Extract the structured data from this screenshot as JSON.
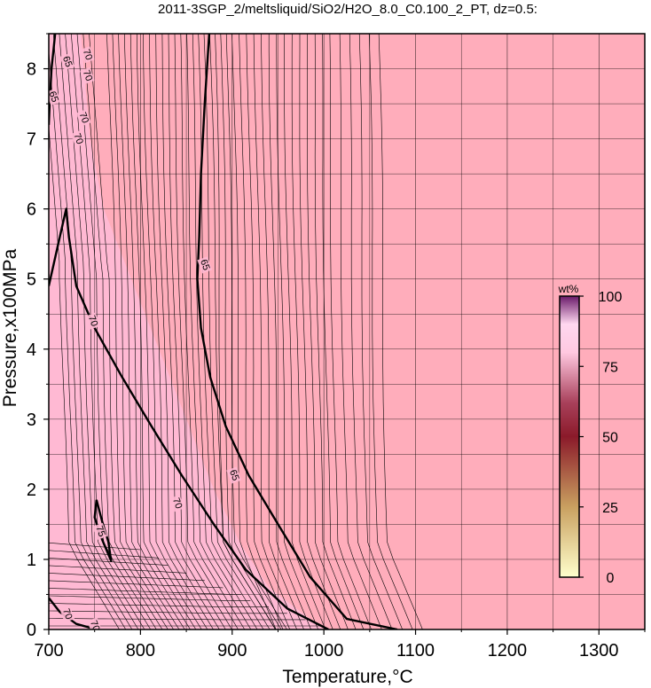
{
  "chart_data": {
    "type": "contour",
    "title": "2011-3SGP_2/meltsliquid/SiO2/H2O_8.0_C0.100_2_PT, dz=0.5:",
    "xlabel": "Temperature,°C",
    "ylabel": "Pressure,x100MPa",
    "xlim": [
      700,
      1350
    ],
    "ylim": [
      0,
      8.5
    ],
    "x_ticks": [
      700,
      800,
      900,
      1000,
      1100,
      1200,
      1300
    ],
    "y_ticks": [
      0,
      1,
      2,
      3,
      4,
      5,
      6,
      7,
      8
    ],
    "x_tick_labels": [
      "700",
      "800",
      "900",
      "1000",
      "1100",
      "1200",
      "1300"
    ],
    "y_tick_labels": [
      "0",
      "1",
      "2",
      "3",
      "4",
      "5",
      "6",
      "7",
      "8"
    ],
    "grid": true,
    "contour_interval": 0.5,
    "bold_contours": [
      {
        "level": 65,
        "label": "65",
        "points": [
          [
            875,
            8.5
          ],
          [
            870,
            7.5
          ],
          [
            866,
            6.5
          ],
          [
            864,
            5.6
          ],
          [
            862,
            5.0
          ],
          [
            866,
            4.3
          ],
          [
            876,
            3.6
          ],
          [
            893,
            2.9
          ],
          [
            918,
            2.2
          ],
          [
            950,
            1.5
          ],
          [
            985,
            0.75
          ],
          [
            1025,
            0.15
          ],
          [
            1080,
            0
          ]
        ]
      },
      {
        "level": 70,
        "label": "70",
        "points": [
          [
            700,
            4.9
          ],
          [
            712,
            5.6
          ],
          [
            719,
            6.0
          ],
          [
            722,
            5.6
          ],
          [
            730,
            4.9
          ],
          [
            750,
            4.3
          ],
          [
            780,
            3.6
          ],
          [
            812,
            2.9
          ],
          [
            845,
            2.2
          ],
          [
            880,
            1.5
          ],
          [
            915,
            0.85
          ],
          [
            960,
            0.3
          ],
          [
            1005,
            0
          ]
        ]
      },
      {
        "level": 70,
        "label": "70",
        "points": [
          [
            700,
            0.45
          ],
          [
            712,
            0.25
          ],
          [
            730,
            0.08
          ],
          [
            752,
            0
          ]
        ]
      },
      {
        "level": 75,
        "label": "75",
        "points": [
          [
            752,
            1.85
          ],
          [
            750,
            1.6
          ],
          [
            756,
            1.35
          ],
          [
            764,
            1.1
          ],
          [
            768,
            0.98
          ],
          [
            765,
            1.25
          ],
          [
            758,
            1.55
          ],
          [
            752,
            1.85
          ]
        ]
      },
      {
        "level": 65,
        "label": "65",
        "points": [
          [
            707,
            8.5
          ],
          [
            703,
            8.0
          ],
          [
            701,
            7.5
          ],
          [
            700,
            7.2
          ]
        ]
      }
    ],
    "small_labels": [
      {
        "text": "65",
        "x": 720,
        "y": 8.1
      },
      {
        "text": "65",
        "x": 705,
        "y": 7.6
      },
      {
        "text": "70",
        "x": 738,
        "y": 7.3
      },
      {
        "text": "70",
        "x": 732,
        "y": 7.0
      },
      {
        "text": "70",
        "x": 742,
        "y": 7.9
      },
      {
        "text": "70",
        "x": 742,
        "y": 8.2
      },
      {
        "text": "65",
        "x": 870,
        "y": 5.2
      },
      {
        "text": "70",
        "x": 748,
        "y": 4.4
      },
      {
        "text": "65",
        "x": 902,
        "y": 2.2
      },
      {
        "text": "70",
        "x": 840,
        "y": 1.8
      },
      {
        "text": "75",
        "x": 756,
        "y": 1.4
      },
      {
        "text": "70",
        "x": 720,
        "y": 0.22
      },
      {
        "text": "70",
        "x": 750,
        "y": 0.05
      }
    ],
    "colorbar": {
      "title": "wt%",
      "ticks": [
        0,
        25,
        50,
        75,
        100
      ],
      "tick_labels": [
        "0",
        "25",
        "50",
        "75",
        "100"
      ],
      "colors": [
        "#ffffcc",
        "#c8a060",
        "#8b1a2a",
        "#a0305a",
        "#ffc8e8",
        "#7a2070"
      ]
    },
    "background_color": "#ffadbb",
    "light_region_color": "#ffb9d3"
  }
}
